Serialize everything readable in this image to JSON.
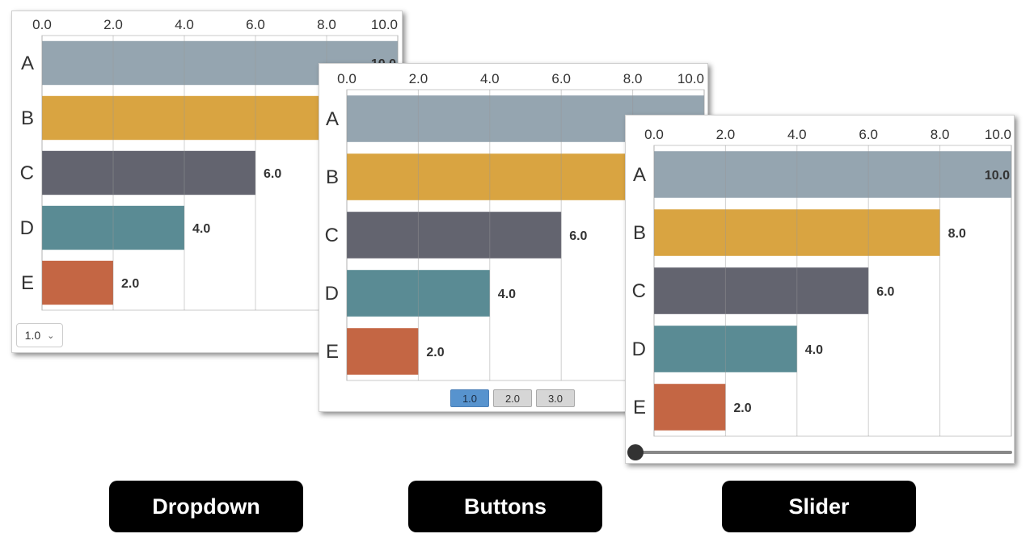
{
  "chart_data": [
    {
      "type": "bar",
      "orientation": "horizontal",
      "categories": [
        "A",
        "B",
        "C",
        "D",
        "E"
      ],
      "values": [
        10.0,
        8.0,
        6.0,
        4.0,
        2.0
      ],
      "value_labels": [
        "10.0",
        "8.0",
        "6.0",
        "4.0",
        "2.0"
      ],
      "xlim": [
        0,
        10
      ],
      "x_ticks": [
        "0.0",
        "2.0",
        "4.0",
        "6.0",
        "8.0",
        "10.0"
      ],
      "axis_position": "top",
      "grid": true,
      "colors": [
        "#95a5b0",
        "#d9a441",
        "#63646f",
        "#5a8b94",
        "#c46644"
      ],
      "control": {
        "type": "dropdown",
        "selected": "1.0"
      },
      "caption": "Dropdown"
    },
    {
      "type": "bar",
      "orientation": "horizontal",
      "categories": [
        "A",
        "B",
        "C",
        "D",
        "E"
      ],
      "values": [
        10.0,
        8.0,
        6.0,
        4.0,
        2.0
      ],
      "value_labels": [
        "10.0",
        "8.0",
        "6.0",
        "4.0",
        "2.0"
      ],
      "xlim": [
        0,
        10
      ],
      "x_ticks": [
        "0.0",
        "2.0",
        "4.0",
        "6.0",
        "8.0",
        "10.0"
      ],
      "axis_position": "top",
      "grid": true,
      "colors": [
        "#95a5b0",
        "#d9a441",
        "#63646f",
        "#5a8b94",
        "#c46644"
      ],
      "control": {
        "type": "buttons",
        "options": [
          "1.0",
          "2.0",
          "3.0"
        ],
        "selected": "1.0"
      },
      "caption": "Buttons"
    },
    {
      "type": "bar",
      "orientation": "horizontal",
      "categories": [
        "A",
        "B",
        "C",
        "D",
        "E"
      ],
      "values": [
        10.0,
        8.0,
        6.0,
        4.0,
        2.0
      ],
      "value_labels": [
        "10.0",
        "8.0",
        "6.0",
        "4.0",
        "2.0"
      ],
      "xlim": [
        0,
        10
      ],
      "x_ticks": [
        "0.0",
        "2.0",
        "4.0",
        "6.0",
        "8.0",
        "10.0"
      ],
      "axis_position": "top",
      "grid": true,
      "colors": [
        "#95a5b0",
        "#d9a441",
        "#63646f",
        "#5a8b94",
        "#c46644"
      ],
      "control": {
        "type": "slider",
        "position_fraction": 0.0
      },
      "caption": "Slider"
    }
  ]
}
